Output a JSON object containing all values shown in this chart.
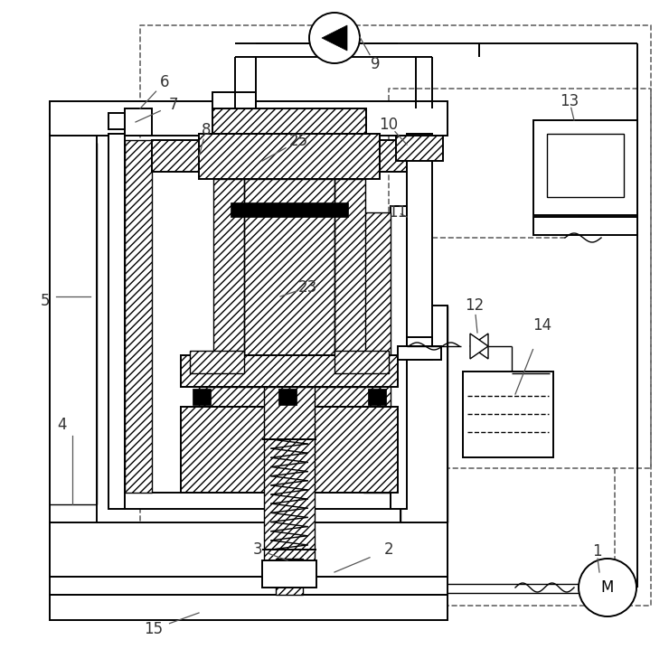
{
  "bg_color": "#ffffff",
  "lc": "#000000",
  "dc": "#666666",
  "figsize": [
    7.4,
    7.18
  ],
  "dpi": 100
}
